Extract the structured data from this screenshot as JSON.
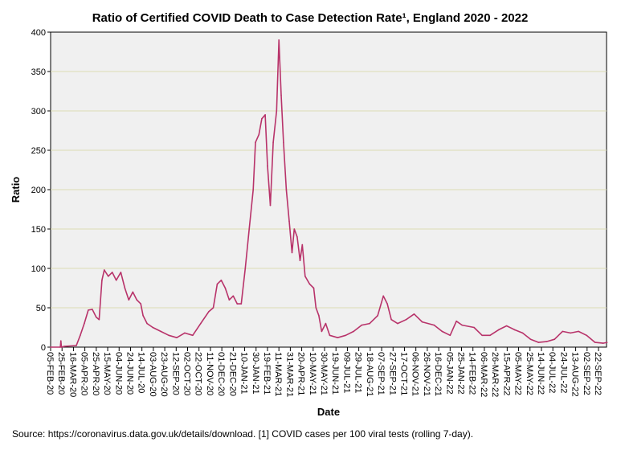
{
  "chart_data": {
    "type": "line",
    "title": "Ratio of Certified COVID Death to Case Detection Rate¹, England 2020 - 2022",
    "xlabel": "Date",
    "ylabel": "Ratio",
    "ylim": [
      0,
      400
    ],
    "yticks": [
      0,
      50,
      100,
      150,
      200,
      250,
      300,
      350,
      400
    ],
    "x_unit": "days since 05-FEB-20",
    "xlim": [
      0,
      975
    ],
    "xtick_step_days": 20,
    "xtick_labels": [
      "05-FEB-20",
      "25-FEB-20",
      "16-MAR-20",
      "05-APR-20",
      "25-APR-20",
      "15-MAY-20",
      "04-JUN-20",
      "24-JUN-20",
      "14-JUL-20",
      "03-AUG-20",
      "23-AUG-20",
      "12-SEP-20",
      "02-OCT-20",
      "22-OCT-20",
      "11-NOV-20",
      "01-DEC-20",
      "21-DEC-20",
      "10-JAN-21",
      "30-JAN-21",
      "19-FEB-21",
      "11-MAR-21",
      "31-MAR-21",
      "20-APR-21",
      "10-MAY-21",
      "30-MAY-21",
      "19-JUN-21",
      "09-JUL-21",
      "29-JUL-21",
      "18-AUG-21",
      "07-SEP-21",
      "27-SEP-21",
      "17-OCT-21",
      "06-NOV-21",
      "26-NOV-21",
      "16-DEC-21",
      "05-JAN-22",
      "25-JAN-22",
      "14-FEB-22",
      "06-MAR-22",
      "26-MAR-22",
      "15-APR-22",
      "05-MAY-22",
      "25-MAY-22",
      "14-JUN-22",
      "04-JUL-22",
      "24-JUL-22",
      "13-AUG-22",
      "02-SEP-22",
      "22-SEP-22"
    ],
    "grid": true,
    "series": [
      {
        "name": "Ratio",
        "color": "#b8336a",
        "x": [
          0,
          17,
          18,
          19,
          24,
          45,
          52,
          59,
          66,
          73,
          80,
          85,
          90,
          94,
          101,
          108,
          115,
          123,
          130,
          137,
          144,
          151,
          158,
          162,
          169,
          179,
          193,
          207,
          221,
          235,
          249,
          263,
          277,
          285,
          292,
          299,
          306,
          313,
          320,
          327,
          334,
          341,
          348,
          355,
          359,
          365,
          370,
          376,
          380,
          385,
          390,
          396,
          400,
          404,
          408,
          413,
          418,
          423,
          427,
          432,
          437,
          441,
          446,
          454,
          461,
          465,
          470,
          475,
          482,
          489,
          503,
          517,
          531,
          545,
          559,
          573,
          583,
          590,
          597,
          608,
          623,
          637,
          651,
          672,
          686,
          700,
          711,
          721,
          742,
          756,
          770,
          785,
          799,
          813,
          827,
          841,
          855,
          869,
          883,
          897,
          911,
          925,
          939,
          954,
          968,
          975
        ],
        "y": [
          0,
          0,
          8,
          0,
          1,
          2,
          15,
          30,
          47,
          48,
          38,
          35,
          85,
          98,
          90,
          95,
          85,
          95,
          75,
          60,
          70,
          60,
          55,
          40,
          30,
          25,
          20,
          15,
          12,
          18,
          15,
          30,
          45,
          50,
          80,
          85,
          75,
          60,
          65,
          55,
          55,
          100,
          150,
          200,
          260,
          270,
          290,
          295,
          230,
          180,
          260,
          300,
          390,
          320,
          260,
          200,
          160,
          120,
          150,
          140,
          110,
          130,
          90,
          80,
          75,
          50,
          40,
          20,
          30,
          15,
          12,
          15,
          20,
          28,
          30,
          40,
          65,
          55,
          35,
          30,
          35,
          42,
          32,
          28,
          20,
          15,
          33,
          28,
          25,
          15,
          15,
          22,
          27,
          22,
          18,
          10,
          6,
          7,
          10,
          20,
          18,
          20,
          15,
          6,
          5,
          6
        ]
      }
    ]
  },
  "background_color": "#f0f0f0",
  "gridline_color": "#dcdcb4",
  "footer": "Source: https://coronavirus.data.gov.uk/details/download. [1] COVID cases per 100 viral tests (rolling 7-day)."
}
